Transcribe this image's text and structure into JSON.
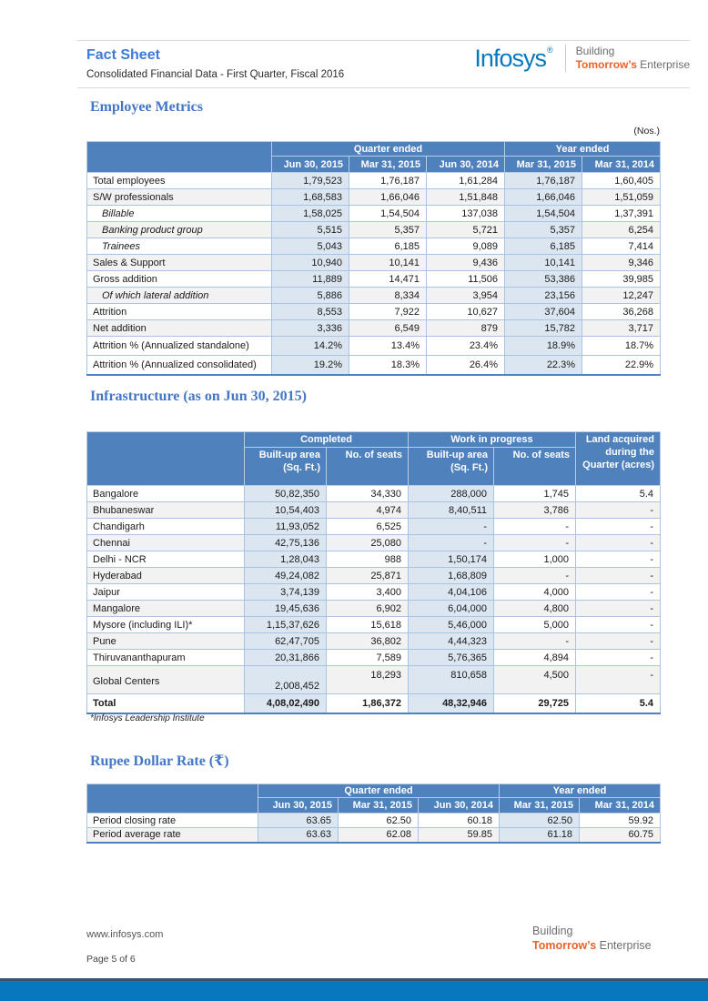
{
  "header": {
    "title": "Fact Sheet",
    "subtitle": "Consolidated Financial Data - First Quarter, Fiscal 2016",
    "logo": {
      "brand": "Infosys",
      "reg": "®",
      "tagline_line1": "Building",
      "tagline_accent": "Tomorrow’s",
      "tagline_rest": "Enterprise"
    }
  },
  "colors": {
    "accent_blue": "#4F81BD",
    "band_blue": "#DCE6F1",
    "stripe_gray": "#F2F2F2",
    "border_blue": "#A9C4E2",
    "header_sep": "#B9CDE7",
    "title_blue": "#3B7CD9",
    "heading_blue": "#4377C6",
    "logo_blue": "#0778BE",
    "tagline_orange": "#E8622C",
    "tagline_gray": "#6E6E6E",
    "bar_blue": "#0878BE",
    "bar_navy": "#3E5174",
    "rule_gray": "#DADADA"
  },
  "employee_metrics": {
    "heading": "Employee Metrics",
    "unit": "(Nos.)",
    "col_groups": [
      {
        "label": "Quarter ended",
        "span": 3
      },
      {
        "label": "Year ended",
        "span": 2
      }
    ],
    "columns": [
      "Jun 30, 2015",
      "Mar 31, 2015",
      "Jun 30, 2014",
      "Mar 31, 2015",
      "Mar 31, 2014"
    ],
    "rows": [
      {
        "label": "Total employees",
        "values": [
          "1,79,523",
          "1,76,187",
          "1,61,284",
          "1,76,187",
          "1,60,405"
        ]
      },
      {
        "label": "S/W professionals",
        "shade": true,
        "values": [
          "1,68,583",
          "1,66,046",
          "1,51,848",
          "1,66,046",
          "1,51,059"
        ]
      },
      {
        "label": "Billable",
        "indent": true,
        "values": [
          "1,58,025",
          "1,54,504",
          "137,038",
          "1,54,504",
          "1,37,391"
        ]
      },
      {
        "label": "Banking product group",
        "indent": true,
        "shade": true,
        "values": [
          "5,515",
          "5,357",
          "5,721",
          "5,357",
          "6,254"
        ]
      },
      {
        "label": "Trainees",
        "indent": true,
        "values": [
          "5,043",
          "6,185",
          "9,089",
          "6,185",
          "7,414"
        ]
      },
      {
        "label": "Sales & Support",
        "shade": true,
        "values": [
          "10,940",
          "10,141",
          "9,436",
          "10,141",
          "9,346"
        ]
      },
      {
        "label": "Gross addition",
        "values": [
          "11,889",
          "14,471",
          "11,506",
          "53,386",
          "39,985"
        ]
      },
      {
        "label": "Of which lateral addition",
        "indent": true,
        "shade": true,
        "values": [
          "5,886",
          "8,334",
          "3,954",
          "23,156",
          "12,247"
        ]
      },
      {
        "label": "Attrition",
        "values": [
          "8,553",
          "7,922",
          "10,627",
          "37,604",
          "36,268"
        ]
      },
      {
        "label": "Net addition",
        "shade": true,
        "values": [
          "3,336",
          "6,549",
          "879",
          "15,782",
          "3,717"
        ]
      },
      {
        "label": "Attrition % (Annualized standalone)",
        "tall": true,
        "values": [
          "14.2%",
          "13.4%",
          "23.4%",
          "18.9%",
          "18.7%"
        ]
      },
      {
        "label": "Attrition % (Annualized consolidated)",
        "tall": true,
        "values": [
          "19.2%",
          "18.3%",
          "26.4%",
          "22.3%",
          "22.9%"
        ]
      }
    ]
  },
  "infrastructure": {
    "heading": "Infrastructure (as on Jun 30, 2015)",
    "col_groups": [
      {
        "label": "Completed",
        "span": 2
      },
      {
        "label": "Work in progress",
        "span": 2
      }
    ],
    "subcolumns": [
      "Built-up area (Sq. Ft.)",
      "No. of seats",
      "Built-up area (Sq. Ft.)",
      "No. of seats"
    ],
    "land_header": "Land acquired during the Quarter (acres)",
    "rows": [
      {
        "label": "Bangalore",
        "values": [
          "50,82,350",
          "34,330",
          "288,000",
          "1,745",
          "5.4"
        ]
      },
      {
        "label": "Bhubaneswar",
        "shade": true,
        "values": [
          "10,54,403",
          "4,974",
          "8,40,511",
          "3,786",
          "-"
        ]
      },
      {
        "label": "Chandigarh",
        "values": [
          "11,93,052",
          "6,525",
          "-",
          "-",
          "-"
        ]
      },
      {
        "label": "Chennai",
        "shade": true,
        "values": [
          "42,75,136",
          "25,080",
          "-",
          "-",
          "-"
        ]
      },
      {
        "label": "Delhi - NCR",
        "values": [
          "1,28,043",
          "988",
          "1,50,174",
          "1,000",
          "-"
        ]
      },
      {
        "label": "Hyderabad",
        "shade": true,
        "values": [
          "49,24,082",
          "25,871",
          "1,68,809",
          "-",
          "-"
        ]
      },
      {
        "label": "Jaipur",
        "values": [
          "3,74,139",
          "3,400",
          "4,04,106",
          "4,000",
          "-"
        ]
      },
      {
        "label": "Mangalore",
        "shade": true,
        "values": [
          "19,45,636",
          "6,902",
          "6,04,000",
          "4,800",
          "-"
        ]
      },
      {
        "label": "Mysore (including ILI)*",
        "values": [
          "1,15,37,626",
          "15,618",
          "5,46,000",
          "5,000",
          "-"
        ]
      },
      {
        "label": "Pune",
        "shade": true,
        "values": [
          "62,47,705",
          "36,802",
          "4,44,323",
          "-",
          "-"
        ]
      },
      {
        "label": "Thiruvananthapuram",
        "values": [
          "20,31,866",
          "7,589",
          "5,76,365",
          "4,894",
          "-"
        ]
      },
      {
        "label": "Global Centers",
        "shade": true,
        "gc": true,
        "values": [
          "2,008,452",
          "18,293",
          "810,658",
          "4,500",
          "-"
        ]
      },
      {
        "label": "Total",
        "bold": true,
        "values": [
          "4,08,02,490",
          "1,86,372",
          "48,32,946",
          "29,725",
          "5.4"
        ]
      }
    ],
    "footnote": "*Infosys Leadership Institute"
  },
  "rupee_rate": {
    "heading": "Rupee Dollar Rate (₹)",
    "col_groups": [
      {
        "label": "Quarter ended",
        "span": 3
      },
      {
        "label": "Year ended",
        "span": 2
      }
    ],
    "columns": [
      "Jun 30, 2015",
      "Mar 31, 2015",
      "Jun 30, 2014",
      "Mar 31, 2015",
      "Mar 31, 2014"
    ],
    "rows": [
      {
        "label": "Period closing rate",
        "values": [
          "63.65",
          "62.50",
          "60.18",
          "62.50",
          "59.92"
        ]
      },
      {
        "label": "Period average rate",
        "shade": true,
        "values": [
          "63.63",
          "62.08",
          "59.85",
          "61.18",
          "60.75"
        ]
      }
    ]
  },
  "footer": {
    "website": "www.infosys.com",
    "page": "Page 5 of 6",
    "tagline_line1": "Building",
    "tagline_accent": "Tomorrow’s",
    "tagline_rest": "Enterprise"
  }
}
